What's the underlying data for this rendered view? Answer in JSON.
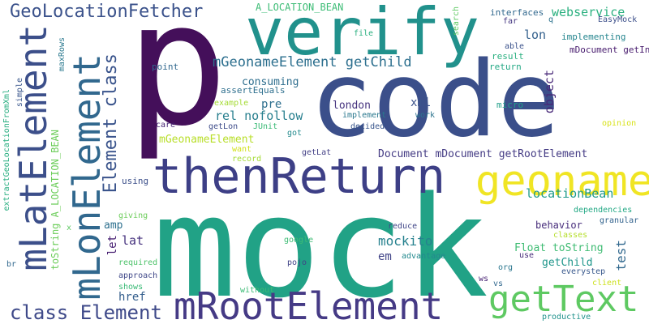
{
  "word_cloud": {
    "words": [
      {
        "text": "p",
        "color": "#440f5a"
      },
      {
        "text": "code",
        "color": "#3b4f8a"
      },
      {
        "text": "mock",
        "color": "#21a286"
      },
      {
        "text": "verify",
        "color": "#21918c"
      },
      {
        "text": "thenReturn",
        "color": "#3d3f86"
      },
      {
        "text": "geoname",
        "color": "#f0e524"
      },
      {
        "text": "mRootElement",
        "color": "#453a85"
      },
      {
        "text": "getText",
        "color": "#5ec962"
      },
      {
        "text": "mLatElement",
        "color": "#3c4f8a"
      },
      {
        "text": "mLonElement",
        "color": "#31688e"
      },
      {
        "text": "GeoLocationFetcher",
        "color": "#3b528b"
      },
      {
        "text": "class Element",
        "color": "#3e4989"
      },
      {
        "text": "Element class",
        "color": "#3a548c"
      },
      {
        "text": "mGeonameElement getChild",
        "color": "#2c6f8e"
      },
      {
        "text": "webservice",
        "color": "#2ab07f"
      },
      {
        "text": "A_LOCATION_BEAN",
        "color": "#3cbc75"
      },
      {
        "text": "locationBean",
        "color": "#1f9a8a"
      },
      {
        "text": "Document mDocument getRootElement",
        "color": "#443b84"
      },
      {
        "text": "mockito",
        "color": "#26818e"
      },
      {
        "text": "consuming",
        "color": "#2e6e8e"
      },
      {
        "text": "rel nofollow",
        "color": "#277f8e"
      },
      {
        "text": "mGeonameElement",
        "color": "#b8de29"
      },
      {
        "text": "london",
        "color": "#46337f"
      },
      {
        "text": "lon",
        "color": "#34618d"
      },
      {
        "text": "lat",
        "color": "#46327e"
      },
      {
        "text": "pre",
        "color": "#2e6f8e"
      },
      {
        "text": "xml",
        "color": "#3b528b"
      },
      {
        "text": "object",
        "color": "#482878"
      },
      {
        "text": "mDocument getInstance",
        "color": "#481c6e"
      },
      {
        "text": "Float toString",
        "color": "#3fbc73"
      },
      {
        "text": "test",
        "color": "#31688e"
      },
      {
        "text": "behavior",
        "color": "#472d7b"
      },
      {
        "text": "em",
        "color": "#404387"
      },
      {
        "text": "amp",
        "color": "#2d708e"
      },
      {
        "text": "let",
        "color": "#482173"
      },
      {
        "text": "href",
        "color": "#355f8d"
      },
      {
        "text": "getChild",
        "color": "#1f968b"
      },
      {
        "text": "toString A_LOCATION_BEAN",
        "color": "#6ccd5a"
      },
      {
        "text": "extractGeoLocationFromXml",
        "color": "#28ae80"
      },
      {
        "text": "maxRows",
        "color": "#2a788e"
      },
      {
        "text": "simple",
        "color": "#39568c"
      },
      {
        "text": "interfaces",
        "color": "#31688e"
      },
      {
        "text": "implementing",
        "color": "#25858e"
      },
      {
        "text": "EasyMock",
        "color": "#3c4f8a"
      },
      {
        "text": "result",
        "color": "#29af7f"
      },
      {
        "text": "return",
        "color": "#22a884"
      },
      {
        "text": "file",
        "color": "#29af7f"
      },
      {
        "text": "far",
        "color": "#453781"
      },
      {
        "text": "able",
        "color": "#3b528b"
      },
      {
        "text": "search",
        "color": "#5ec962"
      },
      {
        "text": "q",
        "color": "#2c728e"
      },
      {
        "text": "point",
        "color": "#31688e"
      },
      {
        "text": "assertEquals",
        "color": "#2e6f8e"
      },
      {
        "text": "example",
        "color": "#a5db36"
      },
      {
        "text": "implement",
        "color": "#2a788e"
      },
      {
        "text": "decided",
        "color": "#39568c"
      },
      {
        "text": "care",
        "color": "#482475"
      },
      {
        "text": "getLon",
        "color": "#3e4c8a"
      },
      {
        "text": "JUnit",
        "color": "#3aba76"
      },
      {
        "text": "got",
        "color": "#238a8d"
      },
      {
        "text": "work",
        "color": "#2c738e"
      },
      {
        "text": "micro",
        "color": "#1f9e89"
      },
      {
        "text": "opinion",
        "color": "#d8e219"
      },
      {
        "text": "record",
        "color": "#a5db36"
      },
      {
        "text": "want",
        "color": "#d2e21b"
      },
      {
        "text": "getLat",
        "color": "#423f85"
      },
      {
        "text": "using",
        "color": "#3c4f8a"
      },
      {
        "text": "dependencies",
        "color": "#22a884"
      },
      {
        "text": "giving",
        "color": "#6ccd5a"
      },
      {
        "text": "x",
        "color": "#5ec962"
      },
      {
        "text": "reduce",
        "color": "#404688"
      },
      {
        "text": "granular",
        "color": "#33638d"
      },
      {
        "text": "classes",
        "color": "#b5de2b"
      },
      {
        "text": "google",
        "color": "#3dbc74"
      },
      {
        "text": "advantage",
        "color": "#23898e"
      },
      {
        "text": "use",
        "color": "#472c7a"
      },
      {
        "text": "required",
        "color": "#4ec36b"
      },
      {
        "text": "pojo",
        "color": "#404387"
      },
      {
        "text": "org",
        "color": "#2a768e"
      },
      {
        "text": "everystep",
        "color": "#38588c"
      },
      {
        "text": "approach",
        "color": "#3f4788"
      },
      {
        "text": "ws",
        "color": "#482374"
      },
      {
        "text": "vs",
        "color": "#31688e"
      },
      {
        "text": "client",
        "color": "#cde11d"
      },
      {
        "text": "shows",
        "color": "#3aba76"
      },
      {
        "text": "without",
        "color": "#3bbb75"
      },
      {
        "text": "br",
        "color": "#31688e"
      },
      {
        "text": "productive",
        "color": "#20928c"
      }
    ]
  }
}
